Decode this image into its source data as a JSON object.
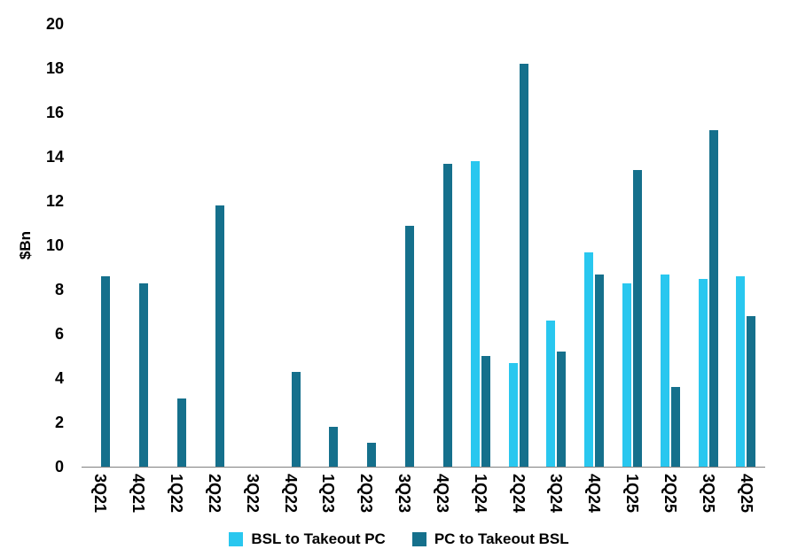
{
  "chart_data": {
    "type": "bar",
    "title": "",
    "xlabel": "",
    "ylabel": "$Bn",
    "ylim": [
      0,
      20
    ],
    "ytick_step": 2,
    "y_tick_labels": [
      "0",
      "2",
      "4",
      "6",
      "8",
      "10",
      "12",
      "14",
      "16",
      "18",
      "20"
    ],
    "grid": false,
    "legend_position": "bottom",
    "categories": [
      "3Q21",
      "4Q21",
      "1Q22",
      "2Q22",
      "3Q22",
      "4Q22",
      "1Q23",
      "2Q23",
      "3Q23",
      "4Q23",
      "1Q24",
      "2Q24",
      "3Q24",
      "4Q24",
      "1Q25",
      "2Q25",
      "3Q25",
      "4Q25"
    ],
    "series": [
      {
        "name": "BSL to Takeout PC",
        "color": "#29c7ef",
        "values": [
          0,
          0,
          0,
          0,
          0,
          0,
          0,
          0,
          0,
          0,
          13.8,
          4.7,
          6.6,
          9.7,
          8.3,
          8.7,
          8.5,
          8.6
        ]
      },
      {
        "name": "PC to Takeout BSL",
        "color": "#15708c",
        "values": [
          8.6,
          8.3,
          3.1,
          11.8,
          0,
          4.3,
          1.8,
          1.1,
          10.9,
          13.7,
          5.0,
          18.2,
          5.2,
          8.7,
          13.4,
          3.6,
          15.2,
          6.8
        ]
      }
    ],
    "colors": {
      "axis_line": "#7f7f7f",
      "text": "#000000",
      "background": "#ffffff"
    }
  }
}
